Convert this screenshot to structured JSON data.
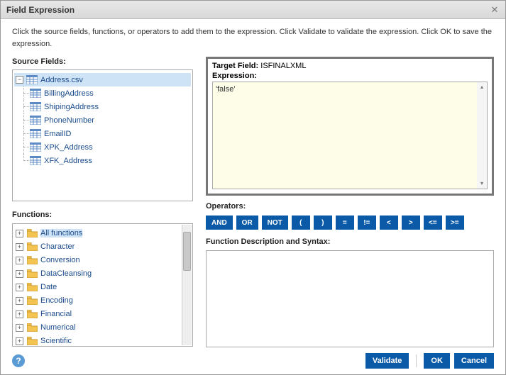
{
  "dialog": {
    "title": "Field Expression"
  },
  "instructions": "Click the source fields, functions, or operators to add them to the expression. Click Validate to validate the expression. Click OK to save the expression.",
  "labels": {
    "sourceFields": "Source Fields:",
    "functions": "Functions:",
    "targetFieldLabel": "Target Field:",
    "expression": "Expression:",
    "operators": "Operators:",
    "funcDesc": "Function Description and Syntax:"
  },
  "target": {
    "field": "ISFINALXML",
    "expressionValue": "'false'"
  },
  "source": {
    "root": "Address.csv",
    "children": [
      "BillingAddress",
      "ShipingAddress",
      "PhoneNumber",
      "EmailID",
      "XPK_Address",
      "XFK_Address"
    ]
  },
  "functionsList": [
    "All functions",
    "Character",
    "Conversion",
    "DataCleansing",
    "Date",
    "Encoding",
    "Financial",
    "Numerical",
    "Scientific"
  ],
  "operators": [
    "AND",
    "OR",
    "NOT",
    "(",
    ")",
    "=",
    "!=",
    "<",
    ">",
    "<=",
    ">="
  ],
  "buttons": {
    "validate": "Validate",
    "ok": "OK",
    "cancel": "Cancel"
  },
  "colors": {
    "brand": "#0a5aa8",
    "exprBg": "#fdfde8",
    "link": "#1a4b8c",
    "border": "#777"
  }
}
